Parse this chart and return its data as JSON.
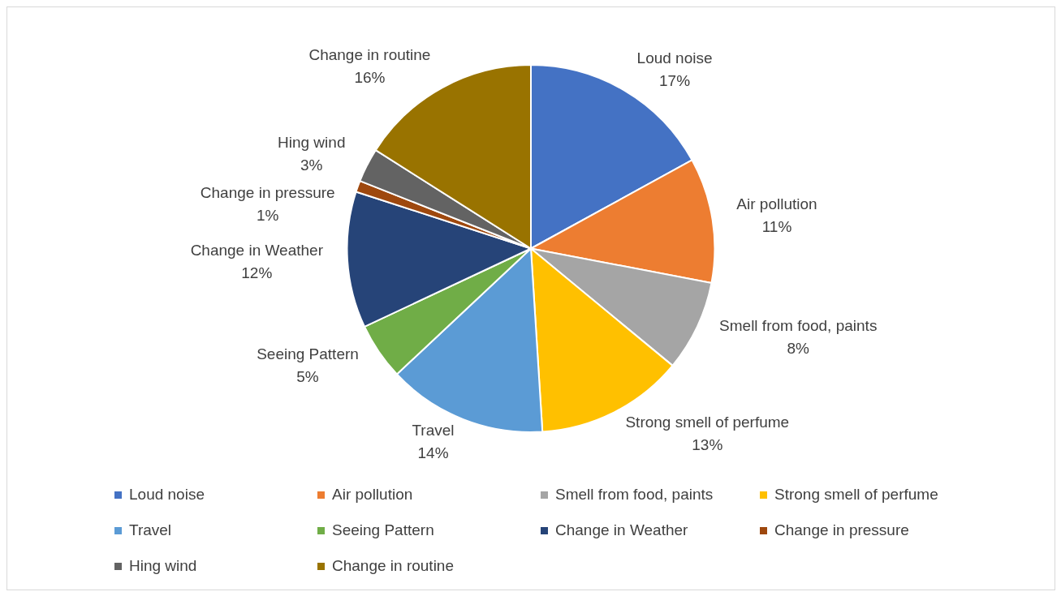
{
  "chart_data": {
    "type": "pie",
    "categories": [
      "Loud noise",
      "Air pollution",
      "Smell from food, paints",
      "Strong smell of perfume",
      "Travel",
      "Seeing Pattern",
      "Change in Weather",
      "Change in pressure",
      "Hing wind",
      "Change in routine"
    ],
    "values": [
      17,
      11,
      8,
      13,
      14,
      5,
      12,
      1,
      3,
      16
    ],
    "value_labels": [
      "17%",
      "11%",
      "8%",
      "13%",
      "14%",
      "5%",
      "12%",
      "1%",
      "3%",
      "16%"
    ],
    "colors": [
      "#4472c4",
      "#ed7d31",
      "#a5a5a5",
      "#ffc000",
      "#5b9bd5",
      "#70ad47",
      "#264478",
      "#9e480e",
      "#636363",
      "#997300"
    ],
    "legend": "bottom"
  }
}
